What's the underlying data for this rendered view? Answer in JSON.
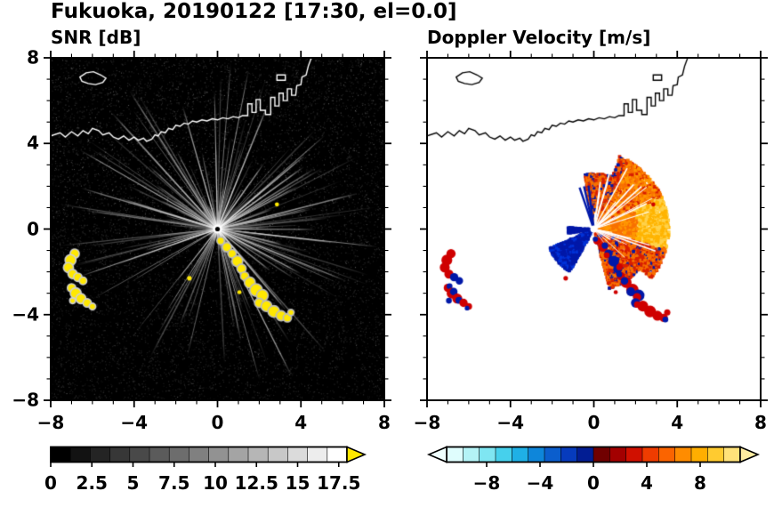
{
  "figure": {
    "title": "Fukuoka, 20190122 [17:30, el=0.0]"
  },
  "chart_data": [
    {
      "type": "heatmap",
      "title": "SNR [dB]",
      "xlabel": "",
      "ylabel": "",
      "xlim": [
        -8,
        8
      ],
      "ylim": [
        -8,
        8
      ],
      "xticks": [
        -8,
        -4,
        0,
        4,
        8
      ],
      "yticks": [
        8,
        4,
        0,
        -4,
        -8
      ],
      "minor_tick_step": 1,
      "background": "#000000",
      "radar_center": [
        0,
        0
      ],
      "strong_echo_color": "#ffe800",
      "colorbar": {
        "min": 0,
        "max": 18,
        "segments": 15,
        "ticks": [
          0,
          2.5,
          5,
          7.5,
          10,
          12.5,
          15,
          17.5
        ],
        "palette": "grayscale-black-to-white",
        "over_arrow_color": "#ffe800"
      }
    },
    {
      "type": "heatmap",
      "title": "Doppler Velocity [m/s]",
      "xlabel": "",
      "ylabel": "",
      "xlim": [
        -8,
        8
      ],
      "ylim": [
        -8,
        8
      ],
      "xticks": [
        -8,
        -4,
        0,
        4,
        8
      ],
      "yticks": [
        8,
        4,
        0,
        -4,
        -8
      ],
      "minor_tick_step": 1,
      "background": "#ffffff",
      "radar_center": [
        0,
        0
      ],
      "negative_color": "#0018a8",
      "positive_colors": [
        "#e03000",
        "#f87000",
        "#ff9800",
        "#ffb400",
        "#ffd24a",
        "#d81e00"
      ],
      "fan": {
        "angle_start_deg": -75,
        "angle_end_deg": 100,
        "max_radius": 3.6
      },
      "blue_wedge": {
        "angle_start_deg": 203,
        "angle_end_deg": 240,
        "max_radius": 2.3
      },
      "colorbar": {
        "min": -11,
        "max": 11,
        "segments": 18,
        "ticks": [
          -8,
          -4,
          0,
          4,
          8
        ],
        "palette": [
          "#dffdfd",
          "#b4f3f6",
          "#7fe6f2",
          "#46d0ec",
          "#1fb0e6",
          "#0e86da",
          "#0b5ecd",
          "#063bbd",
          "#021d93",
          "#700000",
          "#a30000",
          "#d01000",
          "#ef3c00",
          "#fb6400",
          "#ff8c00",
          "#ffae00",
          "#ffcb30",
          "#ffe27a"
        ],
        "under_arrow_color": "#effffe",
        "over_arrow_color": "#ffeda0"
      }
    }
  ],
  "coastline": {
    "mainland": [
      [
        -8,
        4.35
      ],
      [
        -7.55,
        4.5
      ],
      [
        -7.3,
        4.3
      ],
      [
        -7.0,
        4.55
      ],
      [
        -6.7,
        4.35
      ],
      [
        -6.45,
        4.6
      ],
      [
        -6.2,
        4.45
      ],
      [
        -6.0,
        4.7
      ],
      [
        -5.7,
        4.6
      ],
      [
        -5.5,
        4.4
      ],
      [
        -5.2,
        4.5
      ],
      [
        -5.0,
        4.3
      ],
      [
        -4.75,
        4.2
      ],
      [
        -4.5,
        4.35
      ],
      [
        -4.25,
        4.15
      ],
      [
        -4.0,
        4.3
      ],
      [
        -3.8,
        4.15
      ],
      [
        -3.55,
        4.25
      ],
      [
        -3.4,
        4.1
      ],
      [
        -3.15,
        4.2
      ],
      [
        -3.0,
        4.4
      ],
      [
        -2.85,
        4.35
      ],
      [
        -2.7,
        4.55
      ],
      [
        -2.5,
        4.5
      ],
      [
        -2.35,
        4.7
      ],
      [
        -2.15,
        4.65
      ],
      [
        -2.0,
        4.85
      ],
      [
        -1.8,
        4.8
      ],
      [
        -1.6,
        4.95
      ],
      [
        -1.4,
        4.9
      ],
      [
        -1.2,
        5.05
      ],
      [
        -1.0,
        5.0
      ],
      [
        -0.75,
        5.1
      ],
      [
        -0.5,
        5.05
      ],
      [
        -0.25,
        5.15
      ],
      [
        0,
        5.1
      ],
      [
        0.25,
        5.2
      ],
      [
        0.5,
        5.15
      ],
      [
        0.75,
        5.25
      ],
      [
        1.0,
        5.2
      ],
      [
        1.2,
        5.3
      ],
      [
        1.45,
        5.3
      ],
      [
        1.45,
        5.85
      ],
      [
        1.65,
        5.85
      ],
      [
        1.65,
        5.45
      ],
      [
        1.85,
        5.45
      ],
      [
        1.85,
        6.05
      ],
      [
        2.05,
        6.05
      ],
      [
        2.05,
        5.55
      ],
      [
        2.3,
        5.55
      ],
      [
        2.3,
        5.35
      ],
      [
        2.55,
        5.35
      ],
      [
        2.55,
        6.15
      ],
      [
        2.75,
        6.15
      ],
      [
        2.75,
        5.75
      ],
      [
        2.95,
        5.75
      ],
      [
        2.95,
        6.35
      ],
      [
        3.15,
        6.35
      ],
      [
        3.15,
        6.0
      ],
      [
        3.35,
        6.0
      ],
      [
        3.35,
        6.55
      ],
      [
        3.55,
        6.55
      ],
      [
        3.55,
        6.25
      ],
      [
        3.75,
        6.25
      ],
      [
        3.8,
        6.7
      ],
      [
        4.0,
        6.75
      ],
      [
        4.05,
        7.1
      ],
      [
        4.25,
        7.2
      ],
      [
        4.35,
        7.6
      ],
      [
        4.5,
        8.0
      ]
    ],
    "island": [
      [
        -6.6,
        7.1
      ],
      [
        -6.3,
        7.3
      ],
      [
        -5.95,
        7.35
      ],
      [
        -5.6,
        7.2
      ],
      [
        -5.35,
        7.05
      ],
      [
        -5.5,
        6.85
      ],
      [
        -5.85,
        6.75
      ],
      [
        -6.2,
        6.8
      ],
      [
        -6.5,
        6.9
      ]
    ],
    "islet": [
      [
        2.85,
        6.95
      ],
      [
        3.25,
        6.95
      ],
      [
        3.25,
        7.2
      ],
      [
        2.85,
        7.2
      ]
    ]
  },
  "echoes": {
    "southwest_arc1": [
      [
        -6.85,
        -1.15,
        0.22
      ],
      [
        -7.05,
        -1.45,
        0.26
      ],
      [
        -7.15,
        -1.8,
        0.24
      ],
      [
        -6.95,
        -2.1,
        0.22
      ],
      [
        -6.7,
        -2.25,
        0.2
      ],
      [
        -6.45,
        -2.42,
        0.18
      ]
    ],
    "southwest_arc2": [
      [
        -7.0,
        -2.75,
        0.2
      ],
      [
        -6.8,
        -3.0,
        0.26
      ],
      [
        -6.55,
        -3.25,
        0.24
      ],
      [
        -6.25,
        -3.45,
        0.2
      ],
      [
        -6.0,
        -3.62,
        0.16
      ],
      [
        -6.95,
        -3.35,
        0.14
      ]
    ],
    "southeast_chain": [
      [
        0.15,
        -0.55,
        0.18
      ],
      [
        0.45,
        -0.85,
        0.22
      ],
      [
        0.7,
        -1.15,
        0.2
      ],
      [
        0.95,
        -1.5,
        0.26
      ],
      [
        1.15,
        -1.85,
        0.22
      ],
      [
        1.3,
        -2.2,
        0.2
      ],
      [
        1.55,
        -2.5,
        0.26
      ],
      [
        1.85,
        -2.85,
        0.3
      ],
      [
        2.15,
        -3.1,
        0.28
      ],
      [
        2.0,
        -3.45,
        0.22
      ],
      [
        2.35,
        -3.6,
        0.26
      ],
      [
        2.7,
        -3.85,
        0.28
      ],
      [
        3.05,
        -4.05,
        0.24
      ],
      [
        3.35,
        -4.15,
        0.2
      ],
      [
        3.52,
        -3.9,
        0.15
      ]
    ],
    "isolated": [
      [
        2.85,
        1.15,
        0.1
      ],
      [
        -1.35,
        -2.3,
        0.11
      ],
      [
        1.05,
        -2.95,
        0.1
      ]
    ]
  }
}
